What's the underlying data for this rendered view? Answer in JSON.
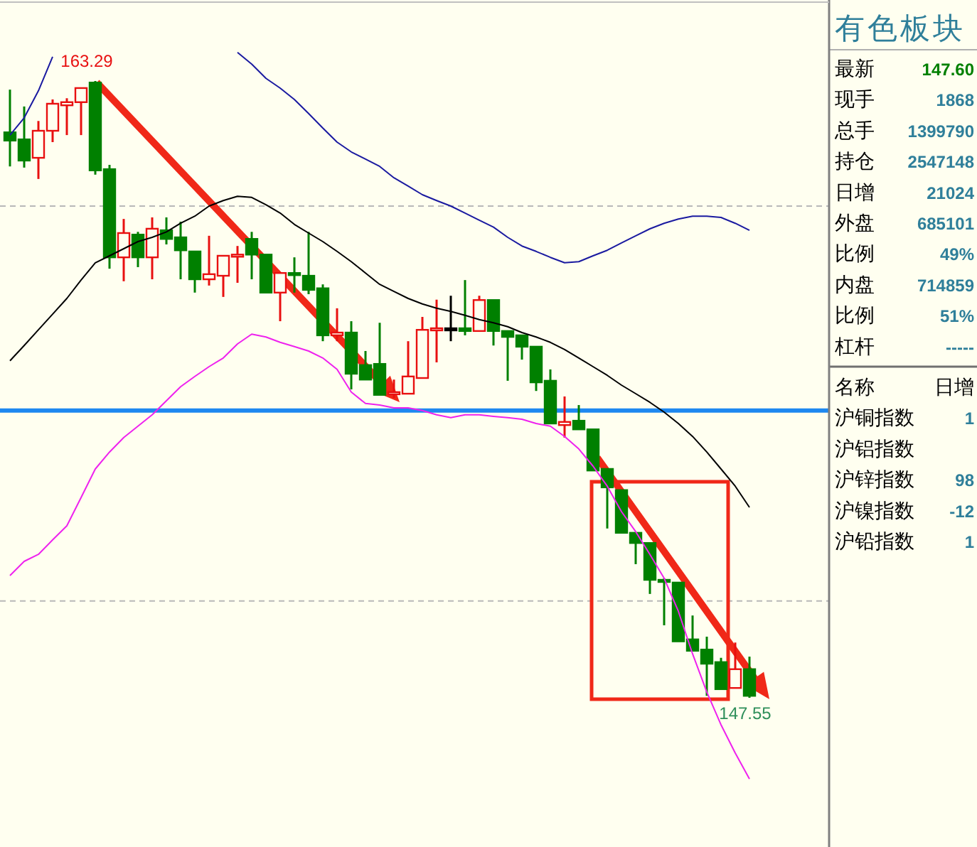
{
  "chart_data": [
    {
      "type": "candlestick",
      "categories": [
        null,
        null,
        null,
        null,
        null,
        null,
        null,
        null,
        null,
        null,
        null,
        null,
        null,
        null,
        null,
        null,
        null,
        null,
        null,
        null,
        null,
        null,
        null,
        null,
        null,
        null,
        null,
        null,
        null,
        null,
        null,
        null,
        null,
        null,
        null,
        null,
        null,
        null,
        null,
        null,
        null,
        null,
        null,
        null,
        null,
        null,
        null,
        null,
        null,
        null,
        null,
        null,
        null
      ],
      "ohlc": [
        [
          161.98,
          163.07,
          161.11,
          161.77
        ],
        [
          161.8,
          162.64,
          161.08,
          161.26
        ],
        [
          161.33,
          162.27,
          160.79,
          162.02
        ],
        [
          162.02,
          162.82,
          161.73,
          162.71
        ],
        [
          162.67,
          162.85,
          161.91,
          162.75
        ],
        [
          162.75,
          163.11,
          161.91,
          163.11
        ],
        [
          163.25,
          163.29,
          160.9,
          161.01
        ],
        [
          161.04,
          161.15,
          158.5,
          158.79
        ],
        [
          158.79,
          159.77,
          158.18,
          159.41
        ],
        [
          159.37,
          159.44,
          158.54,
          158.79
        ],
        [
          158.79,
          159.81,
          158.23,
          159.52
        ],
        [
          159.48,
          159.81,
          159.12,
          159.26
        ],
        [
          159.3,
          159.7,
          158.23,
          158.97
        ],
        [
          158.94,
          158.94,
          157.89,
          158.23
        ],
        [
          158.23,
          159.34,
          158.07,
          158.36
        ],
        [
          158.32,
          158.83,
          157.78,
          158.83
        ],
        [
          158.83,
          159.08,
          158.14,
          158.86
        ],
        [
          159.26,
          159.44,
          158.23,
          158.86
        ],
        [
          158.86,
          158.86,
          157.89,
          157.89
        ],
        [
          157.89,
          158.39,
          157.16,
          158.39
        ],
        [
          158.39,
          158.79,
          157.89,
          158.36
        ],
        [
          158.32,
          159.44,
          157.85,
          157.96
        ],
        [
          158.0,
          158.1,
          156.65,
          156.8
        ],
        [
          156.8,
          157.49,
          156.65,
          156.87
        ],
        [
          156.87,
          157.16,
          155.42,
          155.82
        ],
        [
          156.04,
          156.4,
          155.67,
          155.67
        ],
        [
          156.07,
          157.12,
          155.28,
          155.28
        ],
        [
          155.31,
          155.67,
          155.2,
          155.35
        ],
        [
          155.31,
          156.65,
          155.31,
          155.75
        ],
        [
          155.71,
          157.27,
          155.71,
          156.94
        ],
        [
          156.94,
          157.71,
          156.11,
          156.98
        ],
        [
          156.98,
          157.81,
          156.65,
          156.98
        ],
        [
          156.98,
          158.21,
          156.8,
          156.91
        ],
        [
          156.91,
          157.81,
          156.91,
          157.7
        ],
        [
          157.7,
          157.7,
          156.54,
          156.91
        ],
        [
          156.91,
          156.91,
          155.64,
          156.76
        ],
        [
          156.8,
          156.8,
          156.18,
          156.51
        ],
        [
          156.51,
          156.51,
          155.38,
          155.6
        ],
        [
          155.64,
          155.93,
          154.55,
          154.55
        ],
        [
          154.51,
          155.24,
          154.19,
          154.59
        ],
        [
          154.62,
          155.02,
          154.4,
          154.4
        ],
        [
          154.4,
          154.4,
          153.35,
          153.35
        ],
        [
          153.39,
          153.39,
          151.87,
          152.92
        ],
        [
          152.85,
          152.85,
          151.76,
          151.76
        ],
        [
          151.76,
          151.76,
          150.96,
          151.5
        ],
        [
          151.5,
          151.5,
          150.2,
          150.56
        ],
        [
          150.56,
          150.6,
          149.4,
          150.52
        ],
        [
          150.49,
          150.49,
          148.99,
          148.99
        ],
        [
          149.04,
          149.65,
          148.75,
          148.75
        ],
        [
          148.78,
          149.11,
          147.6,
          148.42
        ],
        [
          148.46,
          148.57,
          147.77,
          147.77
        ],
        [
          147.8,
          148.96,
          147.8,
          148.28
        ],
        [
          148.28,
          148.6,
          147.55,
          147.6
        ]
      ],
      "colors": [
        "#008000",
        "#008000",
        "#e81010",
        "#e81010",
        "#e81010",
        "#e81010",
        "#008000",
        "#008000",
        "#e81010",
        "#008000",
        "#e81010",
        "#008000",
        "#008000",
        "#008000",
        "#e81010",
        "#e81010",
        "#e81010",
        "#008000",
        "#008000",
        "#e81010",
        "#008000",
        "#008000",
        "#008000",
        "#e81010",
        "#008000",
        "#008000",
        "#008000",
        "#e81010",
        "#e81010",
        "#e81010",
        "#e81010",
        "#000000",
        "#008000",
        "#e81010",
        "#008000",
        "#008000",
        "#008000",
        "#008000",
        "#008000",
        "#e81010",
        "#008000",
        "#008000",
        "#008000",
        "#008000",
        "#008000",
        "#008000",
        "#008000",
        "#008000",
        "#008000",
        "#008000",
        "#008000",
        "#e81010",
        "#008000"
      ],
      "series": [
        {
          "type": "line",
          "color": "#1a1aa0",
          "values": [
            161.91,
            162.35,
            163.04,
            163.91,
            null,
            null,
            null,
            null,
            null,
            null,
            null,
            null,
            null,
            null,
            null,
            null,
            164.02,
            163.72,
            163.36,
            163.11,
            162.82,
            162.46,
            162.09,
            161.73,
            161.48,
            161.3,
            161.11,
            160.82,
            160.61,
            160.39,
            160.24,
            160.1,
            159.92,
            159.74,
            159.56,
            159.3,
            159.08,
            158.94,
            158.79,
            158.65,
            158.68,
            158.83,
            158.97,
            159.16,
            159.34,
            159.52,
            159.66,
            159.77,
            159.84,
            159.84,
            159.81,
            159.66,
            159.48
          ]
        },
        {
          "type": "line",
          "color": "#000000",
          "values": [
            156.15,
            156.54,
            156.94,
            157.34,
            157.74,
            158.21,
            158.65,
            158.83,
            159.01,
            159.19,
            159.3,
            159.44,
            159.66,
            159.84,
            160.1,
            160.24,
            160.35,
            160.32,
            160.13,
            159.92,
            159.63,
            159.41,
            159.19,
            158.94,
            158.68,
            158.39,
            158.1,
            157.92,
            157.74,
            157.6,
            157.49,
            157.41,
            157.31,
            157.2,
            157.12,
            157.02,
            156.87,
            156.76,
            156.62,
            156.44,
            156.22,
            156.0,
            155.78,
            155.53,
            155.31,
            155.09,
            154.84,
            154.55,
            154.22,
            153.82,
            153.39,
            152.95,
            152.41
          ]
        },
        {
          "type": "line",
          "color": "#ee22ee",
          "values": [
            150.67,
            151.03,
            151.21,
            151.58,
            151.94,
            152.66,
            153.39,
            153.82,
            154.19,
            154.48,
            154.77,
            155.13,
            155.49,
            155.75,
            156.0,
            156.22,
            156.58,
            156.83,
            156.76,
            156.62,
            156.51,
            156.4,
            156.22,
            155.93,
            155.35,
            155.06,
            155.02,
            154.95,
            154.95,
            154.88,
            154.77,
            154.7,
            154.77,
            154.77,
            154.73,
            154.7,
            154.66,
            154.55,
            154.48,
            154.22,
            153.9,
            153.46,
            152.95,
            152.3,
            151.79,
            151.21,
            150.6,
            149.76,
            148.67,
            147.7,
            146.86,
            146.14,
            145.48
          ]
        }
      ],
      "ref_lines": [
        {
          "axis": "y",
          "value": 154.88,
          "color": "#1e88f0",
          "line_style": "solid"
        },
        {
          "axis": "y",
          "value": 160.1,
          "color": "#b8b8b8",
          "line_style": "dashed"
        },
        {
          "axis": "y",
          "value": 150.02,
          "color": "#b8b8b8",
          "line_style": "dashed"
        }
      ],
      "annotations": [
        {
          "text": "163.29",
          "y": 163.29
        },
        {
          "text": "147.55",
          "y": 147.55
        }
      ]
    },
    {
      "type": "other",
      "title": "有色板块",
      "categories": [
        "最新",
        "现手",
        "总手",
        "持仓",
        "日增",
        "外盘",
        "比例",
        "内盘",
        "比例",
        "杠杆"
      ],
      "value_labels": [
        "147.60",
        "1868",
        "1399790",
        "2547148",
        "21024",
        "685101",
        "49%",
        "714859",
        "51%",
        "-----"
      ],
      "colors": [
        "#008000",
        "#2f7f9a",
        "#2f7f9a",
        "#2f7f9a",
        "#2f7f9a",
        "#2f7f9a",
        "#2f7f9a",
        "#2f7f9a",
        "#2f7f9a",
        "#2f7f9a"
      ]
    },
    {
      "type": "other",
      "ylabel": "名称",
      "y2label": "日增",
      "categories": [
        "沪铜指数",
        "沪铝指数",
        "沪锌指数",
        "沪镍指数",
        "沪铅指数"
      ],
      "value_labels": [
        "1",
        null,
        "98",
        "-12",
        "1"
      ],
      "color": "#2f7f9a"
    }
  ]
}
